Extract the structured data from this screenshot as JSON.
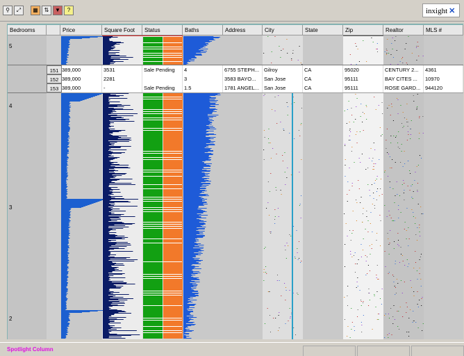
{
  "toolbar": {
    "buttons": [
      "pin-icon",
      "zoom-icon",
      "table-icon",
      "sort-icon",
      "filter-icon",
      "help-icon"
    ],
    "help_label": "?",
    "logo_text": "inxight"
  },
  "columns": [
    "Bedrooms",
    "Price",
    "Square Foot",
    "Status",
    "Baths",
    "Address",
    "City",
    "State",
    "Zip",
    "Realtor",
    "MLS #"
  ],
  "groups": [
    {
      "label": "5"
    },
    {
      "label": "4"
    },
    {
      "label": "3"
    },
    {
      "label": "2"
    }
  ],
  "focus_rows": [
    {
      "num": "151",
      "price": "389,000",
      "sqft": "3531",
      "status": "Sale Pending",
      "baths": "4",
      "address": "6755 STEPH...",
      "city": "Gilroy",
      "state": "CA",
      "zip": "95020",
      "realtor": "CENTURY 2...",
      "mls": "4361"
    },
    {
      "num": "152",
      "price": "389,000",
      "sqft": "2281",
      "status": "",
      "baths": "3",
      "address": "3583 BAYO...",
      "city": "San Jose",
      "state": "CA",
      "zip": "95111",
      "realtor": "BAY CITES ...",
      "mls": "10970"
    },
    {
      "num": "153",
      "price": "389,000",
      "sqft": "-",
      "status": "Sale Pending",
      "baths": "1.5",
      "address": "1781 ANGEL...",
      "city": "San Jose",
      "state": "CA",
      "zip": "95111",
      "realtor": "ROSE GARD...",
      "mls": "944120"
    }
  ],
  "footer": {
    "spotlight_label": "Spotlight Column"
  },
  "colors": {
    "price": "#1b5fd0",
    "sqft": "#0b1c66",
    "status_green": "#12a012",
    "status_orange": "#f2792a",
    "baths": "#1e5bd8",
    "spotlight": "#e010e0"
  }
}
